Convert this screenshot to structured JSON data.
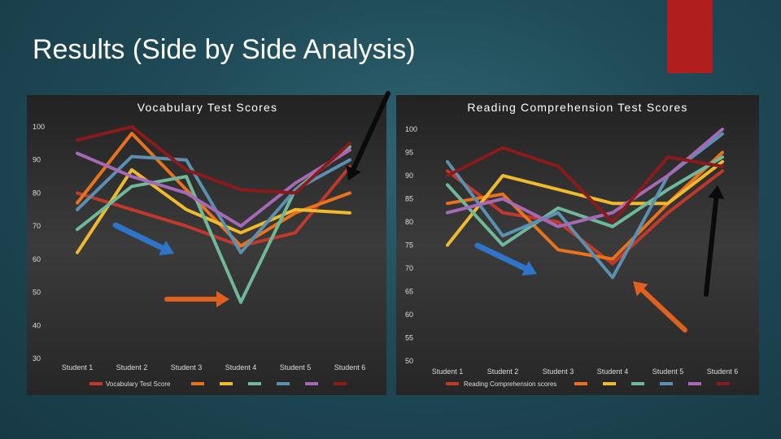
{
  "slide": {
    "title": "Results (Side by Side Analysis)"
  },
  "colors": {
    "accent_block": "#b01e1e",
    "arrow_blue": "#2e75c9",
    "arrow_orange": "#e0611e",
    "arrow_black": "#0a0a0a"
  },
  "chart_data": [
    {
      "type": "line",
      "title": "Vocabulary Test Scores",
      "categories": [
        "Student 1",
        "Student 2",
        "Student 3",
        "Student 4",
        "Student 5",
        "Student 6"
      ],
      "ylim": [
        30,
        100
      ],
      "yticks": [
        30,
        40,
        50,
        60,
        70,
        80,
        90,
        100
      ],
      "legend_label": "Vocabulary Test Score",
      "legend_position": "bottom",
      "grid": false,
      "series": [
        {
          "color": "#c0392b",
          "values": [
            80,
            75,
            70,
            64,
            68,
            88
          ]
        },
        {
          "color": "#e8731c",
          "values": [
            77,
            98,
            81,
            64,
            74,
            80
          ]
        },
        {
          "color": "#f0b92e",
          "values": [
            62,
            87,
            75,
            68,
            75,
            74
          ]
        },
        {
          "color": "#6fb89a",
          "values": [
            69,
            82,
            85,
            47,
            81,
            94
          ]
        },
        {
          "color": "#5b90b0",
          "values": [
            75,
            91,
            90,
            62,
            81,
            90
          ]
        },
        {
          "color": "#a569b5",
          "values": [
            92,
            85,
            80,
            70,
            83,
            93
          ]
        },
        {
          "color": "#8b1a1a",
          "values": [
            96,
            100,
            87,
            81,
            80,
            95
          ]
        }
      ]
    },
    {
      "type": "line",
      "title": "Reading Comprehension Test Scores",
      "categories": [
        "Student 1",
        "Student 2",
        "Student 3",
        "Student 4",
        "Student 5",
        "Student 6"
      ],
      "ylim": [
        50,
        100
      ],
      "yticks": [
        50,
        55,
        60,
        65,
        70,
        75,
        80,
        85,
        90,
        95,
        100
      ],
      "legend_label": "Reading Comprehension scores",
      "legend_position": "bottom",
      "grid": false,
      "series": [
        {
          "color": "#c0392b",
          "values": [
            91,
            82,
            80,
            71,
            82,
            91
          ]
        },
        {
          "color": "#e8731c",
          "values": [
            84,
            86,
            74,
            72,
            84,
            95
          ]
        },
        {
          "color": "#f0b92e",
          "values": [
            75,
            90,
            87,
            84,
            84,
            93
          ]
        },
        {
          "color": "#6fb89a",
          "values": [
            88,
            75,
            83,
            79,
            87,
            94
          ]
        },
        {
          "color": "#5b90b0",
          "values": [
            93,
            77,
            82,
            68,
            90,
            99
          ]
        },
        {
          "color": "#a569b5",
          "values": [
            82,
            85,
            79,
            82,
            90,
            100
          ]
        },
        {
          "color": "#8b1a1a",
          "values": [
            90,
            96,
            92,
            80,
            94,
            92
          ]
        }
      ]
    }
  ]
}
